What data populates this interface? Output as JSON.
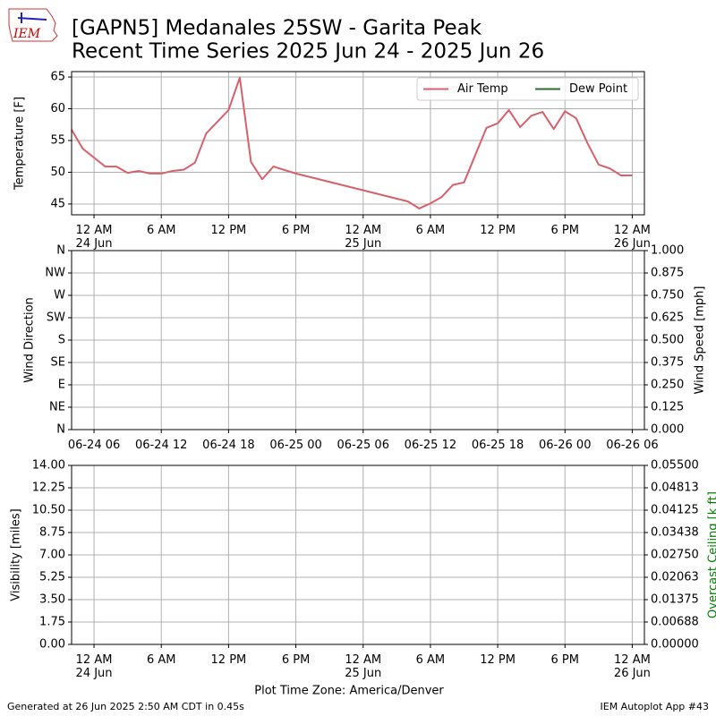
{
  "title": [
    "[GAPN5] Medanales 25SW - Garita Peak",
    "Recent Time Series 2025 Jun 24 - 2025 Jun 26"
  ],
  "logo": "IEM",
  "footer_left": "Generated at 26 Jun 2025 2:50 AM CDT in 0.45s",
  "footer_right": "IEM Autoplot App #43",
  "chart_data": [
    {
      "type": "line",
      "ylabel": "Temperature [F]",
      "legend": "upper right",
      "grid": true,
      "x": [
        "2025-06-23T22:00",
        "2025-06-23T23:00",
        "2025-06-24T00:00",
        "2025-06-24T01:00",
        "2025-06-24T02:00",
        "2025-06-24T03:00",
        "2025-06-24T04:00",
        "2025-06-24T05:00",
        "2025-06-24T06:00",
        "2025-06-24T07:00",
        "2025-06-24T08:00",
        "2025-06-24T09:00",
        "2025-06-24T10:00",
        "2025-06-24T12:00",
        "2025-06-24T13:00",
        "2025-06-24T14:00",
        "2025-06-24T15:00",
        "2025-06-24T16:00",
        "2025-06-24T18:00",
        "2025-06-25T04:00",
        "2025-06-25T05:00",
        "2025-06-25T06:00",
        "2025-06-25T07:00",
        "2025-06-25T08:00",
        "2025-06-25T09:00",
        "2025-06-25T11:00",
        "2025-06-25T12:00",
        "2025-06-25T13:00",
        "2025-06-25T14:00",
        "2025-06-25T15:00",
        "2025-06-25T16:00",
        "2025-06-25T17:00",
        "2025-06-25T18:00",
        "2025-06-25T19:00",
        "2025-06-25T20:00",
        "2025-06-25T21:00",
        "2025-06-25T22:00",
        "2025-06-25T23:00",
        "2025-06-26T00:00"
      ],
      "series": [
        {
          "name": "Air Temp",
          "color": "#d6616b",
          "values": [
            56.7,
            53.7,
            52.3,
            50.9,
            50.9,
            49.9,
            50.2,
            49.8,
            49.8,
            50.2,
            50.4,
            51.5,
            56.1,
            59.8,
            64.9,
            51.6,
            48.9,
            50.9,
            49.8,
            45.4,
            44.3,
            45.1,
            46.1,
            48.0,
            48.4,
            57.0,
            57.7,
            59.8,
            57.1,
            58.9,
            59.5,
            56.8,
            59.6,
            58.5,
            54.6,
            51.2,
            50.6,
            49.5,
            49.5
          ]
        },
        {
          "name": "Dew Point",
          "color": "#2f6b2f",
          "values": [
            null,
            null,
            null,
            null,
            null,
            null,
            null,
            null,
            null,
            null,
            null,
            null,
            null,
            null,
            null,
            null,
            null,
            null,
            null,
            null,
            null,
            null,
            null,
            null,
            null,
            null,
            null,
            null,
            null,
            null,
            null,
            null,
            null,
            null,
            null,
            null,
            null,
            null,
            null
          ]
        }
      ],
      "xlim": [
        "2025-06-23T22:00",
        "2025-06-26T01:05"
      ],
      "xticks": [
        {
          "value": "2025-06-24T00:00",
          "label": [
            "12 AM",
            "24 Jun"
          ]
        },
        {
          "value": "2025-06-24T06:00",
          "label": [
            "6 AM"
          ]
        },
        {
          "value": "2025-06-24T12:00",
          "label": [
            "12 PM"
          ]
        },
        {
          "value": "2025-06-24T18:00",
          "label": [
            "6 PM"
          ]
        },
        {
          "value": "2025-06-25T00:00",
          "label": [
            "12 AM",
            "25 Jun"
          ]
        },
        {
          "value": "2025-06-25T06:00",
          "label": [
            "6 AM"
          ]
        },
        {
          "value": "2025-06-25T12:00",
          "label": [
            "12 PM"
          ]
        },
        {
          "value": "2025-06-25T18:00",
          "label": [
            "6 PM"
          ]
        },
        {
          "value": "2025-06-26T00:00",
          "label": [
            "12 AM",
            "26 Jun"
          ]
        }
      ],
      "ylim": [
        43.3,
        65.85
      ],
      "yticks": [
        45,
        50,
        55,
        60,
        65
      ]
    },
    {
      "type": "line",
      "ylabel": "Wind Direction",
      "y2label": "Wind Speed [mph]",
      "grid": true,
      "series": [],
      "xlim": [
        "2025-06-24T04:00",
        "2025-06-26T07:05"
      ],
      "xticks": [
        {
          "value": "2025-06-24T06:00",
          "label": [
            "06-24 06"
          ]
        },
        {
          "value": "2025-06-24T12:00",
          "label": [
            "06-24 12"
          ]
        },
        {
          "value": "2025-06-24T18:00",
          "label": [
            "06-24 18"
          ]
        },
        {
          "value": "2025-06-25T00:00",
          "label": [
            "06-25 00"
          ]
        },
        {
          "value": "2025-06-25T06:00",
          "label": [
            "06-25 06"
          ]
        },
        {
          "value": "2025-06-25T12:00",
          "label": [
            "06-25 12"
          ]
        },
        {
          "value": "2025-06-25T18:00",
          "label": [
            "06-25 18"
          ]
        },
        {
          "value": "2025-06-26T00:00",
          "label": [
            "06-26 00"
          ]
        },
        {
          "value": "2025-06-26T06:00",
          "label": [
            "06-26 06"
          ]
        }
      ],
      "ylim": [
        0,
        360
      ],
      "yticks": [
        {
          "value": 0,
          "label": "N"
        },
        {
          "value": 45,
          "label": "NE"
        },
        {
          "value": 90,
          "label": "E"
        },
        {
          "value": 135,
          "label": "SE"
        },
        {
          "value": 180,
          "label": "S"
        },
        {
          "value": 225,
          "label": "SW"
        },
        {
          "value": 270,
          "label": "W"
        },
        {
          "value": 315,
          "label": "NW"
        },
        {
          "value": 360,
          "label": "N"
        }
      ],
      "y2lim": [
        0,
        1
      ],
      "y2ticks": [
        {
          "value": 0,
          "label": "0.000"
        },
        {
          "value": 0.125,
          "label": "0.125"
        },
        {
          "value": 0.25,
          "label": "0.250"
        },
        {
          "value": 0.375,
          "label": "0.375"
        },
        {
          "value": 0.5,
          "label": "0.500"
        },
        {
          "value": 0.625,
          "label": "0.625"
        },
        {
          "value": 0.75,
          "label": "0.750"
        },
        {
          "value": 0.875,
          "label": "0.875"
        },
        {
          "value": 1,
          "label": "1.000"
        }
      ]
    },
    {
      "type": "line",
      "ylabel": "Visibility [miles]",
      "y2label": "Overcast Ceiling [k ft]",
      "y2label_color": "#008000",
      "xlabel": "Plot Time Zone: America/Denver",
      "grid": true,
      "series": [],
      "xlim": [
        "2025-06-23T22:00",
        "2025-06-26T01:05"
      ],
      "xticks": [
        {
          "value": "2025-06-24T00:00",
          "label": [
            "12 AM",
            "24 Jun"
          ]
        },
        {
          "value": "2025-06-24T06:00",
          "label": [
            "6 AM"
          ]
        },
        {
          "value": "2025-06-24T12:00",
          "label": [
            "12 PM"
          ]
        },
        {
          "value": "2025-06-24T18:00",
          "label": [
            "6 PM"
          ]
        },
        {
          "value": "2025-06-25T00:00",
          "label": [
            "12 AM",
            "25 Jun"
          ]
        },
        {
          "value": "2025-06-25T06:00",
          "label": [
            "6 AM"
          ]
        },
        {
          "value": "2025-06-25T12:00",
          "label": [
            "12 PM"
          ]
        },
        {
          "value": "2025-06-25T18:00",
          "label": [
            "6 PM"
          ]
        },
        {
          "value": "2025-06-26T00:00",
          "label": [
            "12 AM",
            "26 Jun"
          ]
        }
      ],
      "ylim": [
        0,
        14
      ],
      "yticks": [
        {
          "value": 0,
          "label": "0.00"
        },
        {
          "value": 1.75,
          "label": "1.75"
        },
        {
          "value": 3.5,
          "label": "3.50"
        },
        {
          "value": 5.25,
          "label": "5.25"
        },
        {
          "value": 7,
          "label": "7.00"
        },
        {
          "value": 8.75,
          "label": "8.75"
        },
        {
          "value": 10.5,
          "label": "10.50"
        },
        {
          "value": 12.25,
          "label": "12.25"
        },
        {
          "value": 14,
          "label": "14.00"
        }
      ],
      "y2lim": [
        0,
        0.055
      ],
      "y2ticks": [
        {
          "value": 0,
          "label": "0.00000"
        },
        {
          "value": 0.006875,
          "label": "0.00688"
        },
        {
          "value": 0.01375,
          "label": "0.01375"
        },
        {
          "value": 0.020625,
          "label": "0.02063"
        },
        {
          "value": 0.0275,
          "label": "0.02750"
        },
        {
          "value": 0.034375,
          "label": "0.03438"
        },
        {
          "value": 0.04125,
          "label": "0.04125"
        },
        {
          "value": 0.048125,
          "label": "0.04813"
        },
        {
          "value": 0.055,
          "label": "0.05500"
        }
      ]
    }
  ]
}
